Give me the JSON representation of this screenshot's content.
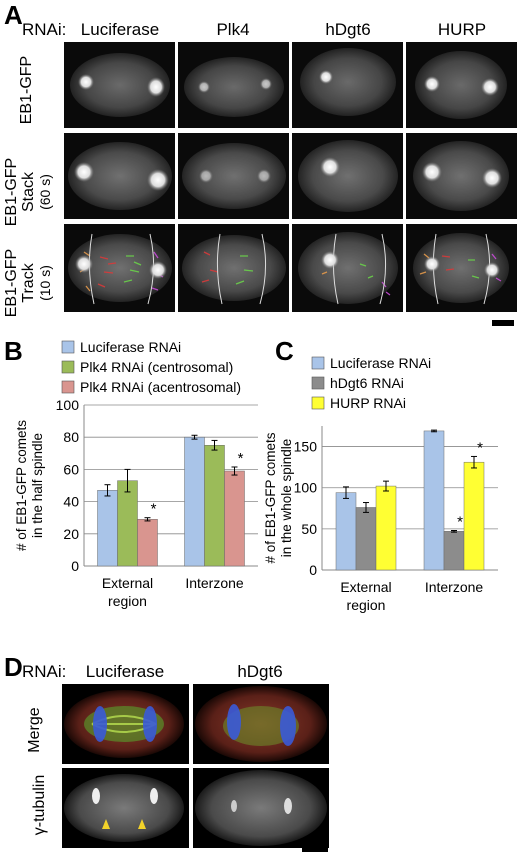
{
  "panels": {
    "A": {
      "letter": "A",
      "rnai_label": "RNAi:",
      "columns": [
        "Luciferase",
        "Plk4",
        "hDgt6",
        "HURP"
      ],
      "rows": [
        {
          "lines": [
            "EB1-GFP"
          ]
        },
        {
          "lines": [
            "EB1-GFP",
            "Stack",
            "(60 s)"
          ]
        },
        {
          "lines": [
            "EB1-GFP",
            "Track",
            "(10 s)"
          ]
        }
      ]
    },
    "B": {
      "letter": "B"
    },
    "C": {
      "letter": "C"
    },
    "D": {
      "letter": "D",
      "rnai_label": "RNAi:",
      "columns": [
        "Luciferase",
        "hDgt6"
      ],
      "rows": [
        "Merge",
        "γ-tubulin"
      ]
    }
  },
  "chart_data": [
    {
      "type": "bar",
      "panel": "B",
      "categories": [
        "External region",
        "Interzone"
      ],
      "category_lines": [
        [
          "External",
          "region"
        ],
        [
          "Interzone"
        ]
      ],
      "ylabel_lines": [
        "# of EB1-GFP comets",
        "in the half spindle"
      ],
      "ylim": [
        0,
        100
      ],
      "yticks": [
        0,
        20,
        40,
        60,
        80,
        100
      ],
      "grid": true,
      "legend_position": "top",
      "series": [
        {
          "name": "Luciferase RNAi",
          "color": "#a9c4e8",
          "values": [
            47,
            80
          ],
          "errors": [
            3.5,
            1.2
          ]
        },
        {
          "name": "Plk4 RNAi (centrosomal)",
          "color": "#9bbb59",
          "values": [
            53,
            75
          ],
          "errors": [
            7,
            3
          ]
        },
        {
          "name": "Plk4 RNAi (acentrosomal)",
          "color": "#d9958f",
          "values": [
            29,
            59
          ],
          "errors": [
            1,
            2.5
          ]
        }
      ],
      "annotations": [
        "*",
        "*"
      ]
    },
    {
      "type": "bar",
      "panel": "C",
      "categories": [
        "External region",
        "Interzone"
      ],
      "category_lines": [
        [
          "External",
          "region"
        ],
        [
          "Interzone"
        ]
      ],
      "ylabel_lines": [
        "# of EB1-GFP comets",
        "in the whole spindle"
      ],
      "ylim": [
        0,
        175
      ],
      "yticks": [
        0,
        50,
        100,
        150
      ],
      "grid": true,
      "legend_position": "top",
      "series": [
        {
          "name": "Luciferase RNAi",
          "color": "#a9c4e8",
          "values": [
            94,
            169
          ],
          "errors": [
            7,
            1
          ]
        },
        {
          "name": "hDgt6 RNAi",
          "color": "#8c8c8c",
          "values": [
            76,
            47
          ],
          "errors": [
            6,
            1
          ]
        },
        {
          "name": "HURP RNAi",
          "color": "#ffff33",
          "values": [
            102,
            131
          ],
          "errors": [
            6,
            7
          ]
        }
      ],
      "annotations": [
        "*",
        "*"
      ]
    }
  ]
}
